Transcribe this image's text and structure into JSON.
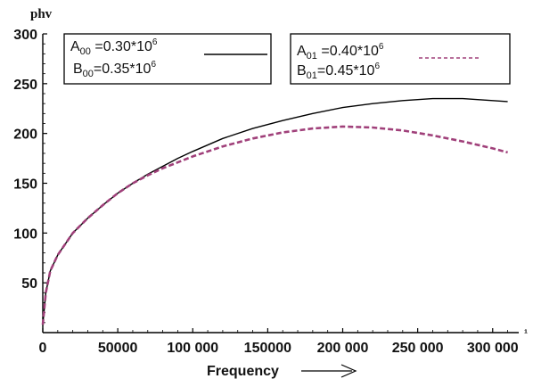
{
  "chart_data": {
    "type": "line",
    "ylabel": "phv",
    "xlabel": "Frequency",
    "x_unit_fragment": "¹",
    "xlim": [
      0,
      315000
    ],
    "ylim": [
      0,
      300
    ],
    "x_ticks": [
      0,
      50000,
      100000,
      150000,
      200000,
      250000,
      300000
    ],
    "x_tick_labels": [
      "0",
      "50000",
      "100 000",
      "150000",
      "200 000",
      "250 000",
      "300 000"
    ],
    "y_ticks": [
      50,
      100,
      150,
      200,
      250,
      300
    ],
    "y_tick_labels": [
      "50",
      "100",
      "150",
      "200",
      "250",
      "300"
    ],
    "legends": [
      {
        "line1": {
          "var": "A",
          "sub": "00",
          "text": " =0.30*10",
          "sup": "6"
        },
        "line2": {
          "var": "B",
          "sub": "00",
          "text": "=0.35*10",
          "sup": "6"
        }
      },
      {
        "line1": {
          "var": "A",
          "sub": "01",
          "text": " =0.40*10",
          "sup": "6"
        },
        "line2": {
          "var": "B",
          "sub": "01",
          "text": "=0.45*10",
          "sup": "6"
        }
      }
    ],
    "series": [
      {
        "color": "#000000",
        "style": "solid",
        "x": [
          0,
          2000,
          5000,
          10000,
          20000,
          30000,
          40000,
          50000,
          60000,
          70000,
          80000,
          90000,
          100000,
          120000,
          140000,
          160000,
          180000,
          200000,
          220000,
          240000,
          260000,
          280000,
          300000,
          310000
        ],
        "y": [
          8,
          40,
          62,
          78,
          100,
          115,
          128,
          140,
          150,
          159,
          167,
          175,
          182,
          195,
          205,
          213,
          220,
          226,
          230,
          233,
          235,
          235,
          233,
          232
        ]
      },
      {
        "color": "#a0407a",
        "style": "dashed",
        "x": [
          0,
          2000,
          5000,
          10000,
          20000,
          30000,
          40000,
          50000,
          60000,
          70000,
          80000,
          90000,
          100000,
          120000,
          140000,
          160000,
          180000,
          200000,
          220000,
          240000,
          260000,
          280000,
          300000,
          310000
        ],
        "y": [
          8,
          40,
          62,
          78,
          100,
          115,
          128,
          140,
          150,
          158,
          165,
          171,
          177,
          187,
          195,
          201,
          205,
          207,
          206,
          203,
          198,
          192,
          185,
          181
        ]
      }
    ]
  }
}
